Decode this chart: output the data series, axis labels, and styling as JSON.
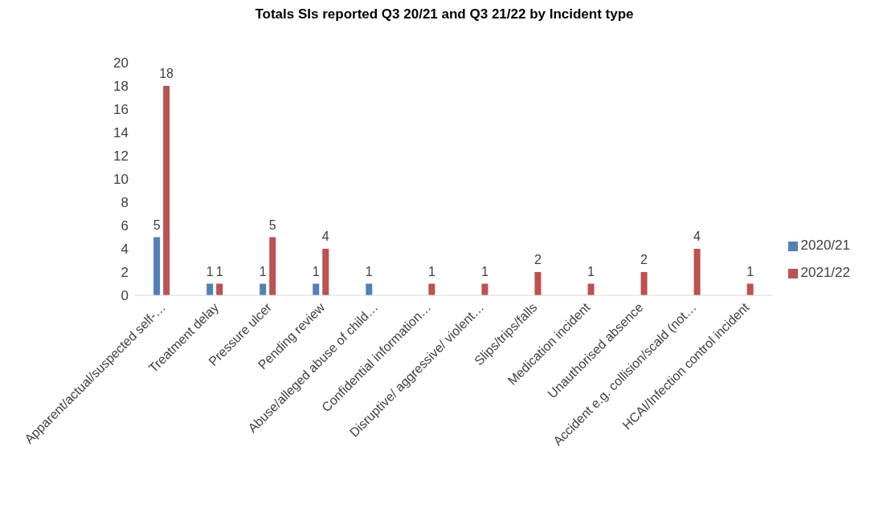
{
  "chart_data": {
    "type": "bar",
    "title": "Totals SIs reported Q3 20/21 and Q3 21/22 by Incident type",
    "categories": [
      "Apparent/actual/suspected self-…",
      "Treatment delay",
      "Pressure ulcer",
      "Pending review",
      "Abuse/alleged abuse of child…",
      "Confidential information…",
      "Disruptive/ aggressive/ violent…",
      "Slips/trips/falls",
      "Medication incident",
      "Unauthorised absence",
      "Accident e.g. collision/scald (not…",
      "HCAI/Infection control incident"
    ],
    "series": [
      {
        "name": "2020/21",
        "color": "#4f81bd",
        "values": [
          5,
          1,
          1,
          1,
          1,
          null,
          null,
          null,
          null,
          null,
          null,
          null
        ]
      },
      {
        "name": "2021/22",
        "color": "#c0504d",
        "values": [
          18,
          1,
          5,
          4,
          null,
          1,
          1,
          2,
          1,
          2,
          4,
          1
        ]
      }
    ],
    "ylim": [
      0,
      20
    ],
    "yticks": [
      0,
      2,
      4,
      6,
      8,
      10,
      12,
      14,
      16,
      18,
      20
    ],
    "grid": false,
    "legend": "right",
    "data_labels": true
  }
}
